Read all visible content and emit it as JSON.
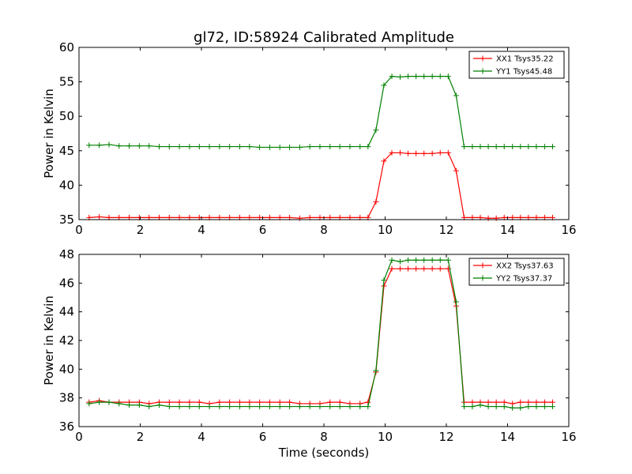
{
  "colors": {
    "xx": "#ff0000",
    "yy": "#008000"
  },
  "chart_data": [
    {
      "type": "line",
      "title": "gl72, ID:58924 Calibrated Amplitude",
      "xlabel": "",
      "ylabel": "Power in Kelvin",
      "xlim": [
        0,
        16
      ],
      "ylim": [
        35,
        60
      ],
      "xticks": [
        0,
        2,
        4,
        6,
        8,
        10,
        12,
        14,
        16
      ],
      "yticks": [
        35,
        40,
        45,
        50,
        55,
        60
      ],
      "grid": false,
      "legend_position": "top-right",
      "x": [
        0.33,
        0.66,
        0.98,
        1.31,
        1.64,
        1.97,
        2.29,
        2.62,
        2.95,
        3.28,
        3.61,
        3.93,
        4.26,
        4.59,
        4.92,
        5.25,
        5.57,
        5.9,
        6.23,
        6.56,
        6.88,
        7.21,
        7.54,
        7.87,
        8.2,
        8.52,
        8.85,
        9.18,
        9.44,
        9.7,
        9.96,
        10.22,
        10.49,
        10.75,
        11.01,
        11.27,
        11.54,
        11.8,
        12.06,
        12.32,
        12.58,
        12.85,
        13.11,
        13.37,
        13.63,
        13.89,
        14.16,
        14.42,
        14.68,
        14.94,
        15.21,
        15.47
      ],
      "series": [
        {
          "name": "XX1 Tsys35.22",
          "color": "#ff0000",
          "values": [
            35.3,
            35.4,
            35.3,
            35.3,
            35.3,
            35.3,
            35.3,
            35.3,
            35.3,
            35.3,
            35.3,
            35.3,
            35.3,
            35.3,
            35.3,
            35.3,
            35.3,
            35.3,
            35.3,
            35.3,
            35.3,
            35.2,
            35.3,
            35.3,
            35.3,
            35.3,
            35.3,
            35.3,
            35.3,
            37.6,
            43.5,
            44.7,
            44.7,
            44.6,
            44.6,
            44.6,
            44.6,
            44.7,
            44.7,
            42.1,
            35.3,
            35.3,
            35.3,
            35.2,
            35.2,
            35.3,
            35.3,
            35.3,
            35.3,
            35.3,
            35.3,
            35.3
          ]
        },
        {
          "name": "YY1 Tsys45.48",
          "color": "#008000",
          "values": [
            45.8,
            45.8,
            45.9,
            45.7,
            45.7,
            45.7,
            45.7,
            45.6,
            45.6,
            45.6,
            45.6,
            45.6,
            45.6,
            45.6,
            45.6,
            45.6,
            45.6,
            45.5,
            45.5,
            45.5,
            45.5,
            45.5,
            45.6,
            45.6,
            45.6,
            45.6,
            45.6,
            45.6,
            45.6,
            48.0,
            54.5,
            55.8,
            55.7,
            55.8,
            55.8,
            55.8,
            55.8,
            55.8,
            55.8,
            53.0,
            45.6,
            45.6,
            45.6,
            45.6,
            45.6,
            45.6,
            45.6,
            45.6,
            45.6,
            45.6,
            45.6,
            45.6
          ]
        }
      ]
    },
    {
      "type": "line",
      "title": "",
      "xlabel": "Time (seconds)",
      "ylabel": "Power in Kelvin",
      "xlim": [
        0,
        16
      ],
      "ylim": [
        36,
        48
      ],
      "xticks": [
        0,
        2,
        4,
        6,
        8,
        10,
        12,
        14,
        16
      ],
      "yticks": [
        36,
        38,
        40,
        42,
        44,
        46,
        48
      ],
      "grid": false,
      "legend_position": "top-right",
      "x": [
        0.33,
        0.66,
        0.98,
        1.31,
        1.64,
        1.97,
        2.29,
        2.62,
        2.95,
        3.28,
        3.61,
        3.93,
        4.26,
        4.59,
        4.92,
        5.25,
        5.57,
        5.9,
        6.23,
        6.56,
        6.88,
        7.21,
        7.54,
        7.87,
        8.2,
        8.52,
        8.85,
        9.18,
        9.44,
        9.7,
        9.96,
        10.22,
        10.49,
        10.75,
        11.01,
        11.27,
        11.54,
        11.8,
        12.06,
        12.32,
        12.58,
        12.85,
        13.11,
        13.37,
        13.63,
        13.89,
        14.16,
        14.42,
        14.68,
        14.94,
        15.21,
        15.47
      ],
      "series": [
        {
          "name": "XX2 Tsys37.63",
          "color": "#ff0000",
          "values": [
            37.7,
            37.8,
            37.7,
            37.7,
            37.7,
            37.7,
            37.6,
            37.7,
            37.7,
            37.7,
            37.7,
            37.7,
            37.6,
            37.7,
            37.7,
            37.7,
            37.7,
            37.7,
            37.7,
            37.7,
            37.7,
            37.6,
            37.6,
            37.6,
            37.7,
            37.7,
            37.6,
            37.6,
            37.7,
            39.8,
            45.8,
            47.0,
            47.0,
            47.0,
            47.0,
            47.0,
            47.0,
            47.0,
            47.0,
            44.4,
            37.7,
            37.7,
            37.7,
            37.7,
            37.7,
            37.7,
            37.6,
            37.7,
            37.7,
            37.7,
            37.7,
            37.7
          ]
        },
        {
          "name": "YY2 Tsys37.37",
          "color": "#008000",
          "values": [
            37.6,
            37.7,
            37.7,
            37.6,
            37.5,
            37.5,
            37.4,
            37.5,
            37.4,
            37.4,
            37.4,
            37.4,
            37.4,
            37.4,
            37.4,
            37.4,
            37.4,
            37.4,
            37.4,
            37.4,
            37.4,
            37.4,
            37.4,
            37.4,
            37.4,
            37.4,
            37.4,
            37.4,
            37.4,
            39.9,
            46.2,
            47.6,
            47.5,
            47.6,
            47.6,
            47.6,
            47.6,
            47.6,
            47.6,
            44.7,
            37.4,
            37.4,
            37.5,
            37.4,
            37.4,
            37.4,
            37.3,
            37.3,
            37.4,
            37.4,
            37.4,
            37.4
          ]
        }
      ]
    }
  ]
}
